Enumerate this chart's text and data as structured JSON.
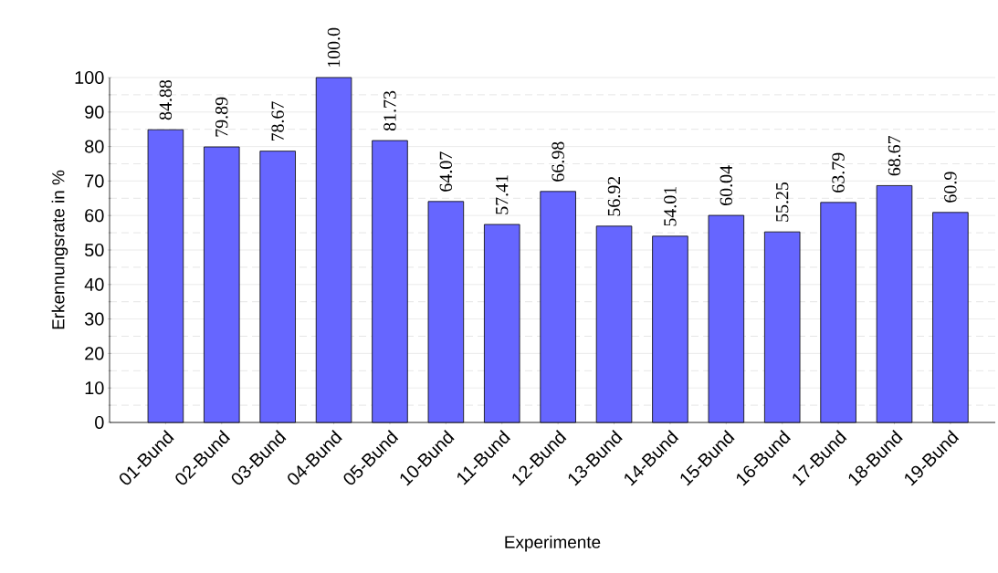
{
  "chart_data": {
    "type": "bar",
    "xlabel": "Experimente",
    "ylabel": "Erkennungsrate in %",
    "categories": [
      "01-Bund",
      "02-Bund",
      "03-Bund",
      "04-Bund",
      "05-Bund",
      "10-Bund",
      "11-Bund",
      "12-Bund",
      "13-Bund",
      "14-Bund",
      "15-Bund",
      "16-Bund",
      "17-Bund",
      "18-Bund",
      "19-Bund"
    ],
    "values": [
      84.88,
      79.89,
      78.67,
      100.0,
      81.73,
      64.07,
      57.41,
      66.98,
      56.92,
      54.01,
      60.04,
      55.25,
      63.79,
      68.67,
      60.9
    ],
    "value_labels": [
      "84.88",
      "79.89",
      "78.67",
      "100.0",
      "81.73",
      "64.07",
      "57.41",
      "66.98",
      "56.92",
      "54.01",
      "60.04",
      "55.25",
      "63.79",
      "68.67",
      "60.9"
    ],
    "color": "#6666ff",
    "ylim": [
      0,
      100
    ],
    "yticks": [
      0,
      10,
      20,
      30,
      40,
      50,
      60,
      70,
      80,
      90,
      100
    ],
    "grid": "y"
  }
}
